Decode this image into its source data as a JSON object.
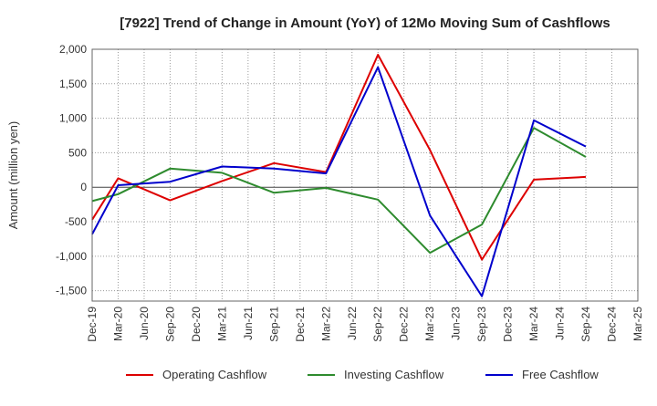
{
  "chart_data": {
    "type": "line",
    "title": "[7922]  Trend of Change in Amount (YoY) of 12Mo Moving Sum of Cashflows",
    "xlabel": "",
    "ylabel": "Amount (million yen)",
    "ylim": [
      -1650,
      2000
    ],
    "yticks": [
      2000,
      1500,
      1000,
      500,
      0,
      -500,
      -1000,
      -1500
    ],
    "ytick_labels": [
      "2,000",
      "1,500",
      "1,000",
      "500",
      "0",
      "-500",
      "-1,000",
      "-1,500"
    ],
    "categories": [
      "Dec-19",
      "Mar-20",
      "Jun-20",
      "Sep-20",
      "Dec-20",
      "Mar-21",
      "Jun-21",
      "Sep-21",
      "Dec-21",
      "Mar-22",
      "Jun-22",
      "Sep-22",
      "Dec-22",
      "Mar-23",
      "Jun-23",
      "Sep-23",
      "Dec-23",
      "Mar-24",
      "Jun-24",
      "Sep-24",
      "Dec-24",
      "Mar-25"
    ],
    "grid": true,
    "legend_position": "bottom",
    "series": [
      {
        "name": "Operating Cashflow",
        "color": "#dd0000",
        "values": [
          -470,
          130,
          null,
          -190,
          null,
          90,
          null,
          350,
          null,
          220,
          null,
          1920,
          null,
          540,
          null,
          -1050,
          null,
          110,
          null,
          150,
          null,
          null
        ]
      },
      {
        "name": "Investing Cashflow",
        "color": "#2e8b2e",
        "values": [
          -200,
          -100,
          null,
          270,
          null,
          210,
          null,
          -80,
          null,
          -10,
          null,
          -180,
          null,
          -950,
          null,
          -540,
          null,
          860,
          null,
          440,
          null,
          null
        ]
      },
      {
        "name": "Free Cashflow",
        "color": "#0000cc",
        "values": [
          -680,
          30,
          null,
          80,
          null,
          300,
          null,
          270,
          null,
          200,
          null,
          1740,
          null,
          -410,
          null,
          -1580,
          null,
          970,
          null,
          590,
          null,
          null
        ]
      }
    ]
  }
}
